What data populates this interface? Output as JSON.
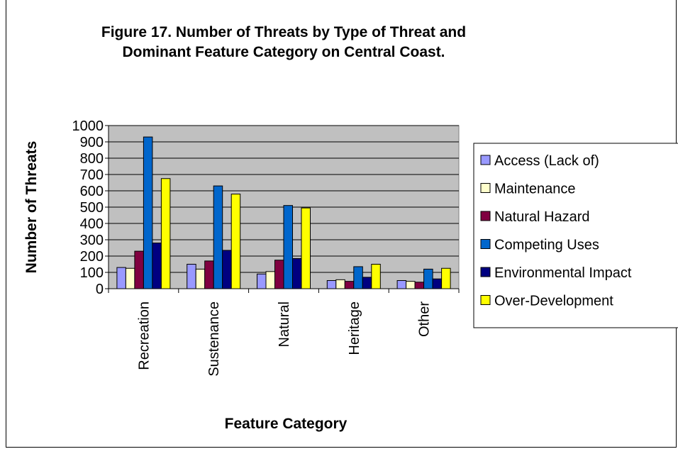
{
  "chart_data": {
    "type": "bar",
    "title_line1": "Figure 17.  Number of Threats by Type of Threat and",
    "title_line2": "Dominant Feature Category on Central Coast.",
    "xlabel": "Feature Category",
    "ylabel": "Number of Threats",
    "ylim": [
      0,
      1000
    ],
    "yticks": [
      0,
      100,
      200,
      300,
      400,
      500,
      600,
      700,
      800,
      900,
      1000
    ],
    "grid": true,
    "legend_position": "right",
    "categories": [
      "Recreation",
      "Sustenance",
      "Natural",
      "Heritage",
      "Other"
    ],
    "series": [
      {
        "name": "Access (Lack of)",
        "color": "#9999ff",
        "values": [
          130,
          150,
          90,
          50,
          50
        ]
      },
      {
        "name": "Maintenance",
        "color": "#ffffcc",
        "values": [
          125,
          120,
          105,
          55,
          45
        ]
      },
      {
        "name": "Natural Hazard",
        "color": "#800040",
        "values": [
          230,
          170,
          175,
          45,
          40
        ]
      },
      {
        "name": "Competing Uses",
        "color": "#0066cc",
        "values": [
          930,
          630,
          510,
          135,
          120
        ]
      },
      {
        "name": "Environmental Impact",
        "color": "#000080",
        "values": [
          280,
          235,
          185,
          70,
          60
        ]
      },
      {
        "name": "Over-Development",
        "color": "#ffff00",
        "values": [
          675,
          580,
          495,
          150,
          125
        ]
      }
    ]
  }
}
